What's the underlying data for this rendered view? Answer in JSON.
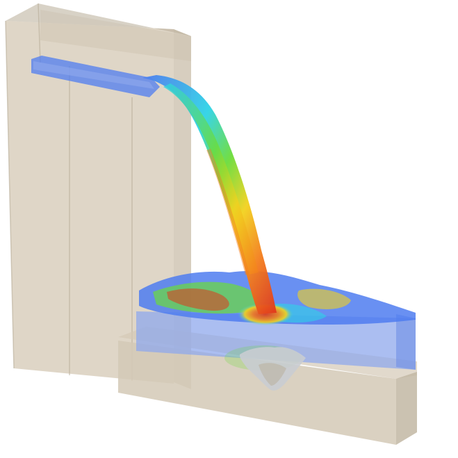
{
  "scene": {
    "subject": "cfd-spillway-plunge-pool",
    "colors": {
      "background": "#ffffff",
      "tower_face": "#d9cfbd",
      "tower_side": "#c9bea9",
      "tower_edge": "#b8ad98",
      "pool_water": "#8fa8ec",
      "pool_edge": "#6f8fe6",
      "basin_face": "#d4c9b6",
      "basin_side": "#c2b7a3",
      "jet_blue": "#4f7cf0",
      "jet_cyan": "#2ed3e6",
      "jet_green": "#6bdc3a",
      "jet_yellow": "#f2d21e",
      "jet_orange": "#f37d1c",
      "jet_red": "#e0361c",
      "scour": "#c9ccd2"
    }
  }
}
